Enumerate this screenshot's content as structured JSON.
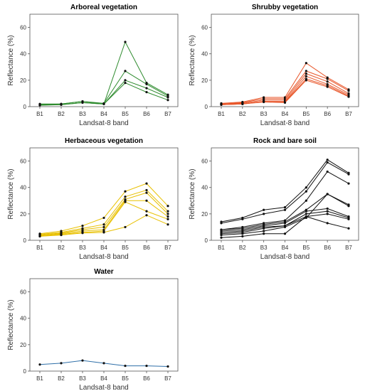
{
  "chart_data": [
    {
      "type": "line",
      "title": "Arboreal vegetation",
      "xlabel": "Landsat-8 band",
      "ylabel": "Reflectance (%)",
      "x": [
        "B1",
        "B2",
        "B3",
        "B4",
        "B5",
        "B6",
        "B7"
      ],
      "ylim": [
        0,
        70
      ],
      "yticks": [
        0,
        20,
        40,
        60
      ],
      "grid": false,
      "color": "#2e8b2e",
      "series": [
        {
          "values": [
            2,
            2,
            4,
            2,
            49,
            18,
            9
          ]
        },
        {
          "values": [
            1.5,
            2,
            4,
            2.5,
            27,
            17,
            8
          ]
        },
        {
          "values": [
            1.5,
            1.5,
            3,
            2,
            20,
            14,
            7
          ]
        },
        {
          "values": [
            1,
            1.5,
            3,
            2,
            18,
            11,
            5
          ]
        }
      ]
    },
    {
      "type": "line",
      "title": "Shrubby vegetation",
      "xlabel": "Landsat-8 band",
      "ylabel": "Reflectance (%)",
      "x": [
        "B1",
        "B2",
        "B3",
        "B4",
        "B5",
        "B6",
        "B7"
      ],
      "ylim": [
        0,
        70
      ],
      "yticks": [
        0,
        20,
        40,
        60
      ],
      "grid": false,
      "color": "#e8562a",
      "series": [
        {
          "values": [
            2.5,
            3.5,
            7,
            7,
            33,
            22,
            13
          ]
        },
        {
          "values": [
            2,
            3,
            6,
            6,
            27,
            21,
            12
          ]
        },
        {
          "values": [
            2,
            2.5,
            5,
            5,
            25,
            19,
            10
          ]
        },
        {
          "values": [
            1.5,
            2,
            4,
            4,
            23,
            17,
            9
          ]
        },
        {
          "values": [
            1.5,
            2,
            4,
            3.5,
            21,
            16,
            8
          ]
        },
        {
          "values": [
            1.5,
            2,
            3.5,
            3,
            20,
            15,
            7.5
          ]
        }
      ]
    },
    {
      "type": "line",
      "title": "Herbaceous vegetation",
      "xlabel": "Landsat-8 band",
      "ylabel": "Reflectance (%)",
      "x": [
        "B1",
        "B2",
        "B3",
        "B4",
        "B5",
        "B6",
        "B7"
      ],
      "ylim": [
        0,
        70
      ],
      "yticks": [
        0,
        20,
        40,
        60
      ],
      "grid": false,
      "color": "#e8c000",
      "series": [
        {
          "values": [
            5,
            7,
            11,
            17,
            37,
            43,
            26
          ]
        },
        {
          "values": [
            4.5,
            6,
            9,
            12,
            33,
            38,
            22
          ]
        },
        {
          "values": [
            4,
            5.5,
            8,
            10,
            31,
            36,
            20
          ]
        },
        {
          "values": [
            3.5,
            5,
            7,
            8,
            30,
            30,
            18
          ]
        },
        {
          "values": [
            3,
            4.5,
            6,
            7,
            29,
            22,
            16
          ]
        },
        {
          "values": [
            3,
            4,
            5.5,
            6,
            10,
            19,
            12
          ]
        }
      ]
    },
    {
      "type": "line",
      "title": "Rock and bare soil",
      "xlabel": "Landsat-8 band",
      "ylabel": "Reflectance (%)",
      "x": [
        "B1",
        "B2",
        "B3",
        "B4",
        "B5",
        "B6",
        "B7"
      ],
      "ylim": [
        0,
        70
      ],
      "yticks": [
        0,
        20,
        40,
        60
      ],
      "grid": false,
      "color": "#111111",
      "series": [
        {
          "values": [
            14,
            17,
            23,
            25,
            40,
            61,
            51
          ]
        },
        {
          "values": [
            13,
            16,
            20,
            23,
            37,
            59,
            50
          ]
        },
        {
          "values": [
            8,
            10,
            13,
            15,
            30,
            52,
            43
          ]
        },
        {
          "values": [
            8,
            9,
            12,
            14,
            23,
            35,
            27
          ]
        },
        {
          "values": [
            7,
            8,
            11,
            13,
            22,
            24,
            18
          ]
        },
        {
          "values": [
            6,
            7,
            10,
            11,
            20,
            22,
            17
          ]
        },
        {
          "values": [
            5,
            6,
            9,
            11,
            18,
            20,
            16
          ]
        },
        {
          "values": [
            4,
            5,
            7,
            10,
            17,
            35,
            26
          ]
        },
        {
          "values": [
            2,
            3,
            5,
            5,
            18,
            13,
            9
          ]
        }
      ]
    },
    {
      "type": "line",
      "title": "Water",
      "xlabel": "Landsat-8 band",
      "ylabel": "Reflectance (%)",
      "x": [
        "B1",
        "B2",
        "B3",
        "B4",
        "B5",
        "B6",
        "B7"
      ],
      "ylim": [
        0,
        70
      ],
      "yticks": [
        0,
        20,
        40,
        60
      ],
      "grid": false,
      "color": "#2e6fa8",
      "series": [
        {
          "values": [
            5,
            6,
            8,
            6,
            4,
            4,
            3.5
          ]
        }
      ]
    }
  ]
}
